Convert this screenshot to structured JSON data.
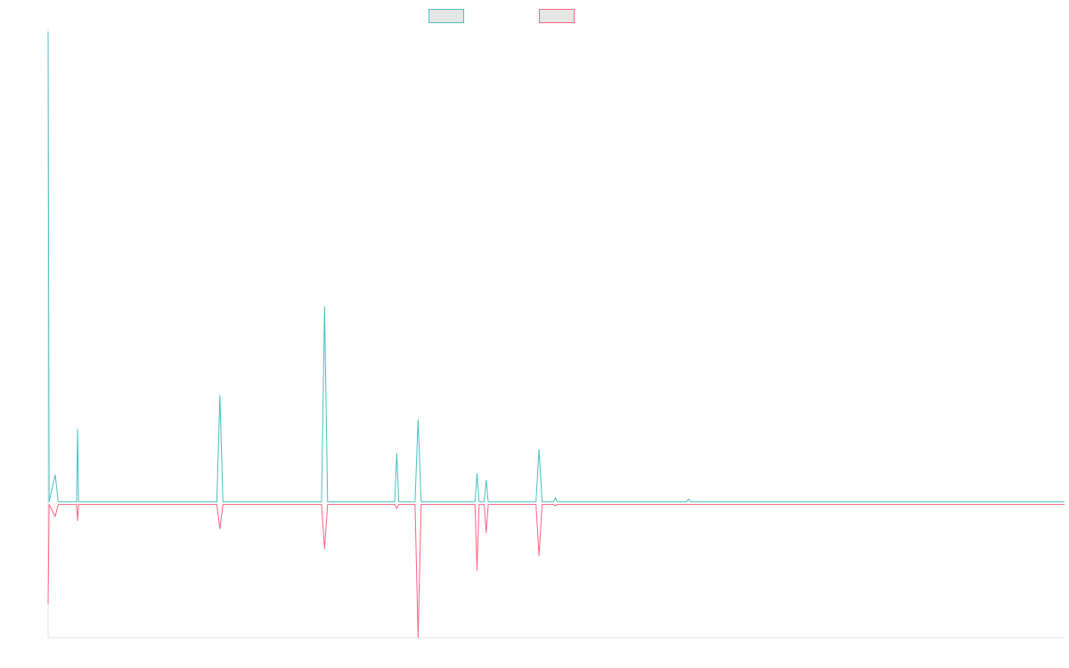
{
  "chart_data": {
    "type": "line",
    "title": "",
    "xlabel": "",
    "ylabel": "",
    "xlim": [
      0,
      100
    ],
    "ylim": [
      -10,
      35
    ],
    "grid": false,
    "legend": {
      "placement": "top-center"
    },
    "series": [
      {
        "color": "#4bc0c0",
        "fill": "#e6e6e6",
        "points": [
          [
            0,
            35
          ],
          [
            0.1,
            0.1
          ],
          [
            0.7,
            2.1
          ],
          [
            1.0,
            0.1
          ],
          [
            2.8,
            0.1
          ],
          [
            2.9,
            5.5
          ],
          [
            3.0,
            0.1
          ],
          [
            16.6,
            0.1
          ],
          [
            16.9,
            8.0
          ],
          [
            17.2,
            0.1
          ],
          [
            26.9,
            0.1
          ],
          [
            27.2,
            14.6
          ],
          [
            27.5,
            0.1
          ],
          [
            34.1,
            0.1
          ],
          [
            34.3,
            3.7
          ],
          [
            34.5,
            0.1
          ],
          [
            36.1,
            0.1
          ],
          [
            36.4,
            6.2
          ],
          [
            36.7,
            0.1
          ],
          [
            42.0,
            0.1
          ],
          [
            42.2,
            2.2
          ],
          [
            42.4,
            0.1
          ],
          [
            42.9,
            0.1
          ],
          [
            43.1,
            1.7
          ],
          [
            43.3,
            0.1
          ],
          [
            44.5,
            0.1
          ],
          [
            44.6,
            0.1
          ],
          [
            44.7,
            0.1
          ],
          [
            48.0,
            0.1
          ],
          [
            48.3,
            4.0
          ],
          [
            48.6,
            0.1
          ],
          [
            49.7,
            0.1
          ],
          [
            49.9,
            0.4
          ],
          [
            50.1,
            0.1
          ],
          [
            51.6,
            0.1
          ],
          [
            51.7,
            0.1
          ],
          [
            51.8,
            0.1
          ],
          [
            62.8,
            0.1
          ],
          [
            63.0,
            0.3
          ],
          [
            63.2,
            0.1
          ],
          [
            100,
            0.1
          ]
        ]
      },
      {
        "color": "#ff6384",
        "fill": "#e6e6e6",
        "points": [
          [
            0,
            -7.5
          ],
          [
            0.1,
            -0.1
          ],
          [
            0.7,
            -1.0
          ],
          [
            1.0,
            -0.1
          ],
          [
            2.8,
            -0.1
          ],
          [
            2.9,
            -1.3
          ],
          [
            3.0,
            -0.1
          ],
          [
            16.6,
            -0.1
          ],
          [
            16.9,
            -1.9
          ],
          [
            17.2,
            -0.1
          ],
          [
            26.9,
            -0.1
          ],
          [
            27.2,
            -3.4
          ],
          [
            27.5,
            -0.1
          ],
          [
            34.1,
            -0.1
          ],
          [
            34.3,
            -0.4
          ],
          [
            34.5,
            -0.1
          ],
          [
            36.1,
            -0.1
          ],
          [
            36.4,
            -10.0
          ],
          [
            36.7,
            -0.1
          ],
          [
            42.0,
            -0.1
          ],
          [
            42.2,
            -5.0
          ],
          [
            42.4,
            -0.1
          ],
          [
            42.9,
            -0.1
          ],
          [
            43.1,
            -2.2
          ],
          [
            43.3,
            -0.1
          ],
          [
            44.5,
            -0.1
          ],
          [
            44.6,
            -0.1
          ],
          [
            44.7,
            -0.1
          ],
          [
            48.0,
            -0.1
          ],
          [
            48.3,
            -3.9
          ],
          [
            48.6,
            -0.1
          ],
          [
            49.7,
            -0.1
          ],
          [
            49.9,
            -0.2
          ],
          [
            50.1,
            -0.1
          ],
          [
            51.6,
            -0.1
          ],
          [
            51.7,
            -0.1
          ],
          [
            51.8,
            -0.1
          ],
          [
            62.8,
            -0.1
          ],
          [
            63.0,
            -0.1
          ],
          [
            63.2,
            -0.1
          ],
          [
            100,
            -0.1
          ]
        ]
      }
    ]
  }
}
